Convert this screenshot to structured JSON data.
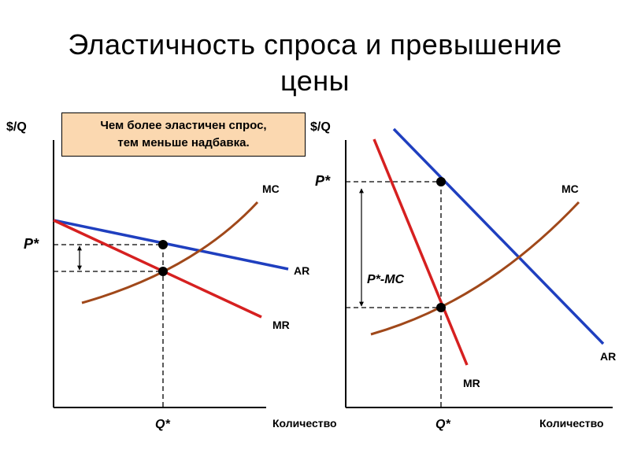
{
  "title_line1": "Эластичность спроса и превышение",
  "title_line2": "цены",
  "note": {
    "line1": "Чем более эластичен спрос,",
    "line2": "тем меньше надбавка."
  },
  "left_panel": {
    "y_axis_label": "$/Q",
    "x_axis_label": "Количество",
    "price_label": "P*",
    "quantity_label": "Q*",
    "curves": {
      "mc": "MC",
      "ar": "AR",
      "mr": "MR"
    }
  },
  "right_panel": {
    "y_axis_label": "$/Q",
    "x_axis_label": "Количество",
    "price_label": "P*",
    "quantity_label": "Q*",
    "markup_label": "P*-MC",
    "curves": {
      "mc": "MC",
      "ar": "AR",
      "mr": "MR"
    }
  },
  "colors": {
    "ar": "#1f3fbf",
    "mr": "#d62020",
    "mc": "#a0481a",
    "note_bg": "#fbd8b0"
  }
}
